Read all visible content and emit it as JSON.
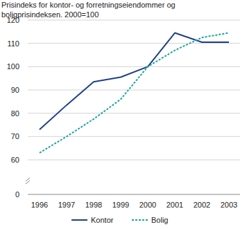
{
  "chart_data": {
    "type": "line",
    "title": "Prisindeks for kontor- og forretningseiendommer og boligprisindeksen. 2000=100",
    "categories": [
      "1996",
      "1997",
      "1998",
      "1999",
      "2000",
      "2001",
      "2002",
      "2003"
    ],
    "series": [
      {
        "name": "Kontor",
        "color": "#1c3f8c",
        "line_style": "solid",
        "values": [
          73,
          83.5,
          93.5,
          95.5,
          100,
          114.5,
          110.5,
          110.5
        ]
      },
      {
        "name": "Bolig",
        "color": "#1aa59a",
        "line_style": "dashed",
        "values": [
          63,
          70,
          77.5,
          86,
          100,
          107,
          112.5,
          114.5
        ]
      }
    ],
    "ylim": [
      0,
      120
    ],
    "yticks": [
      0,
      60,
      70,
      80,
      90,
      100,
      110,
      120
    ],
    "grid": true,
    "legend": "bottom"
  }
}
